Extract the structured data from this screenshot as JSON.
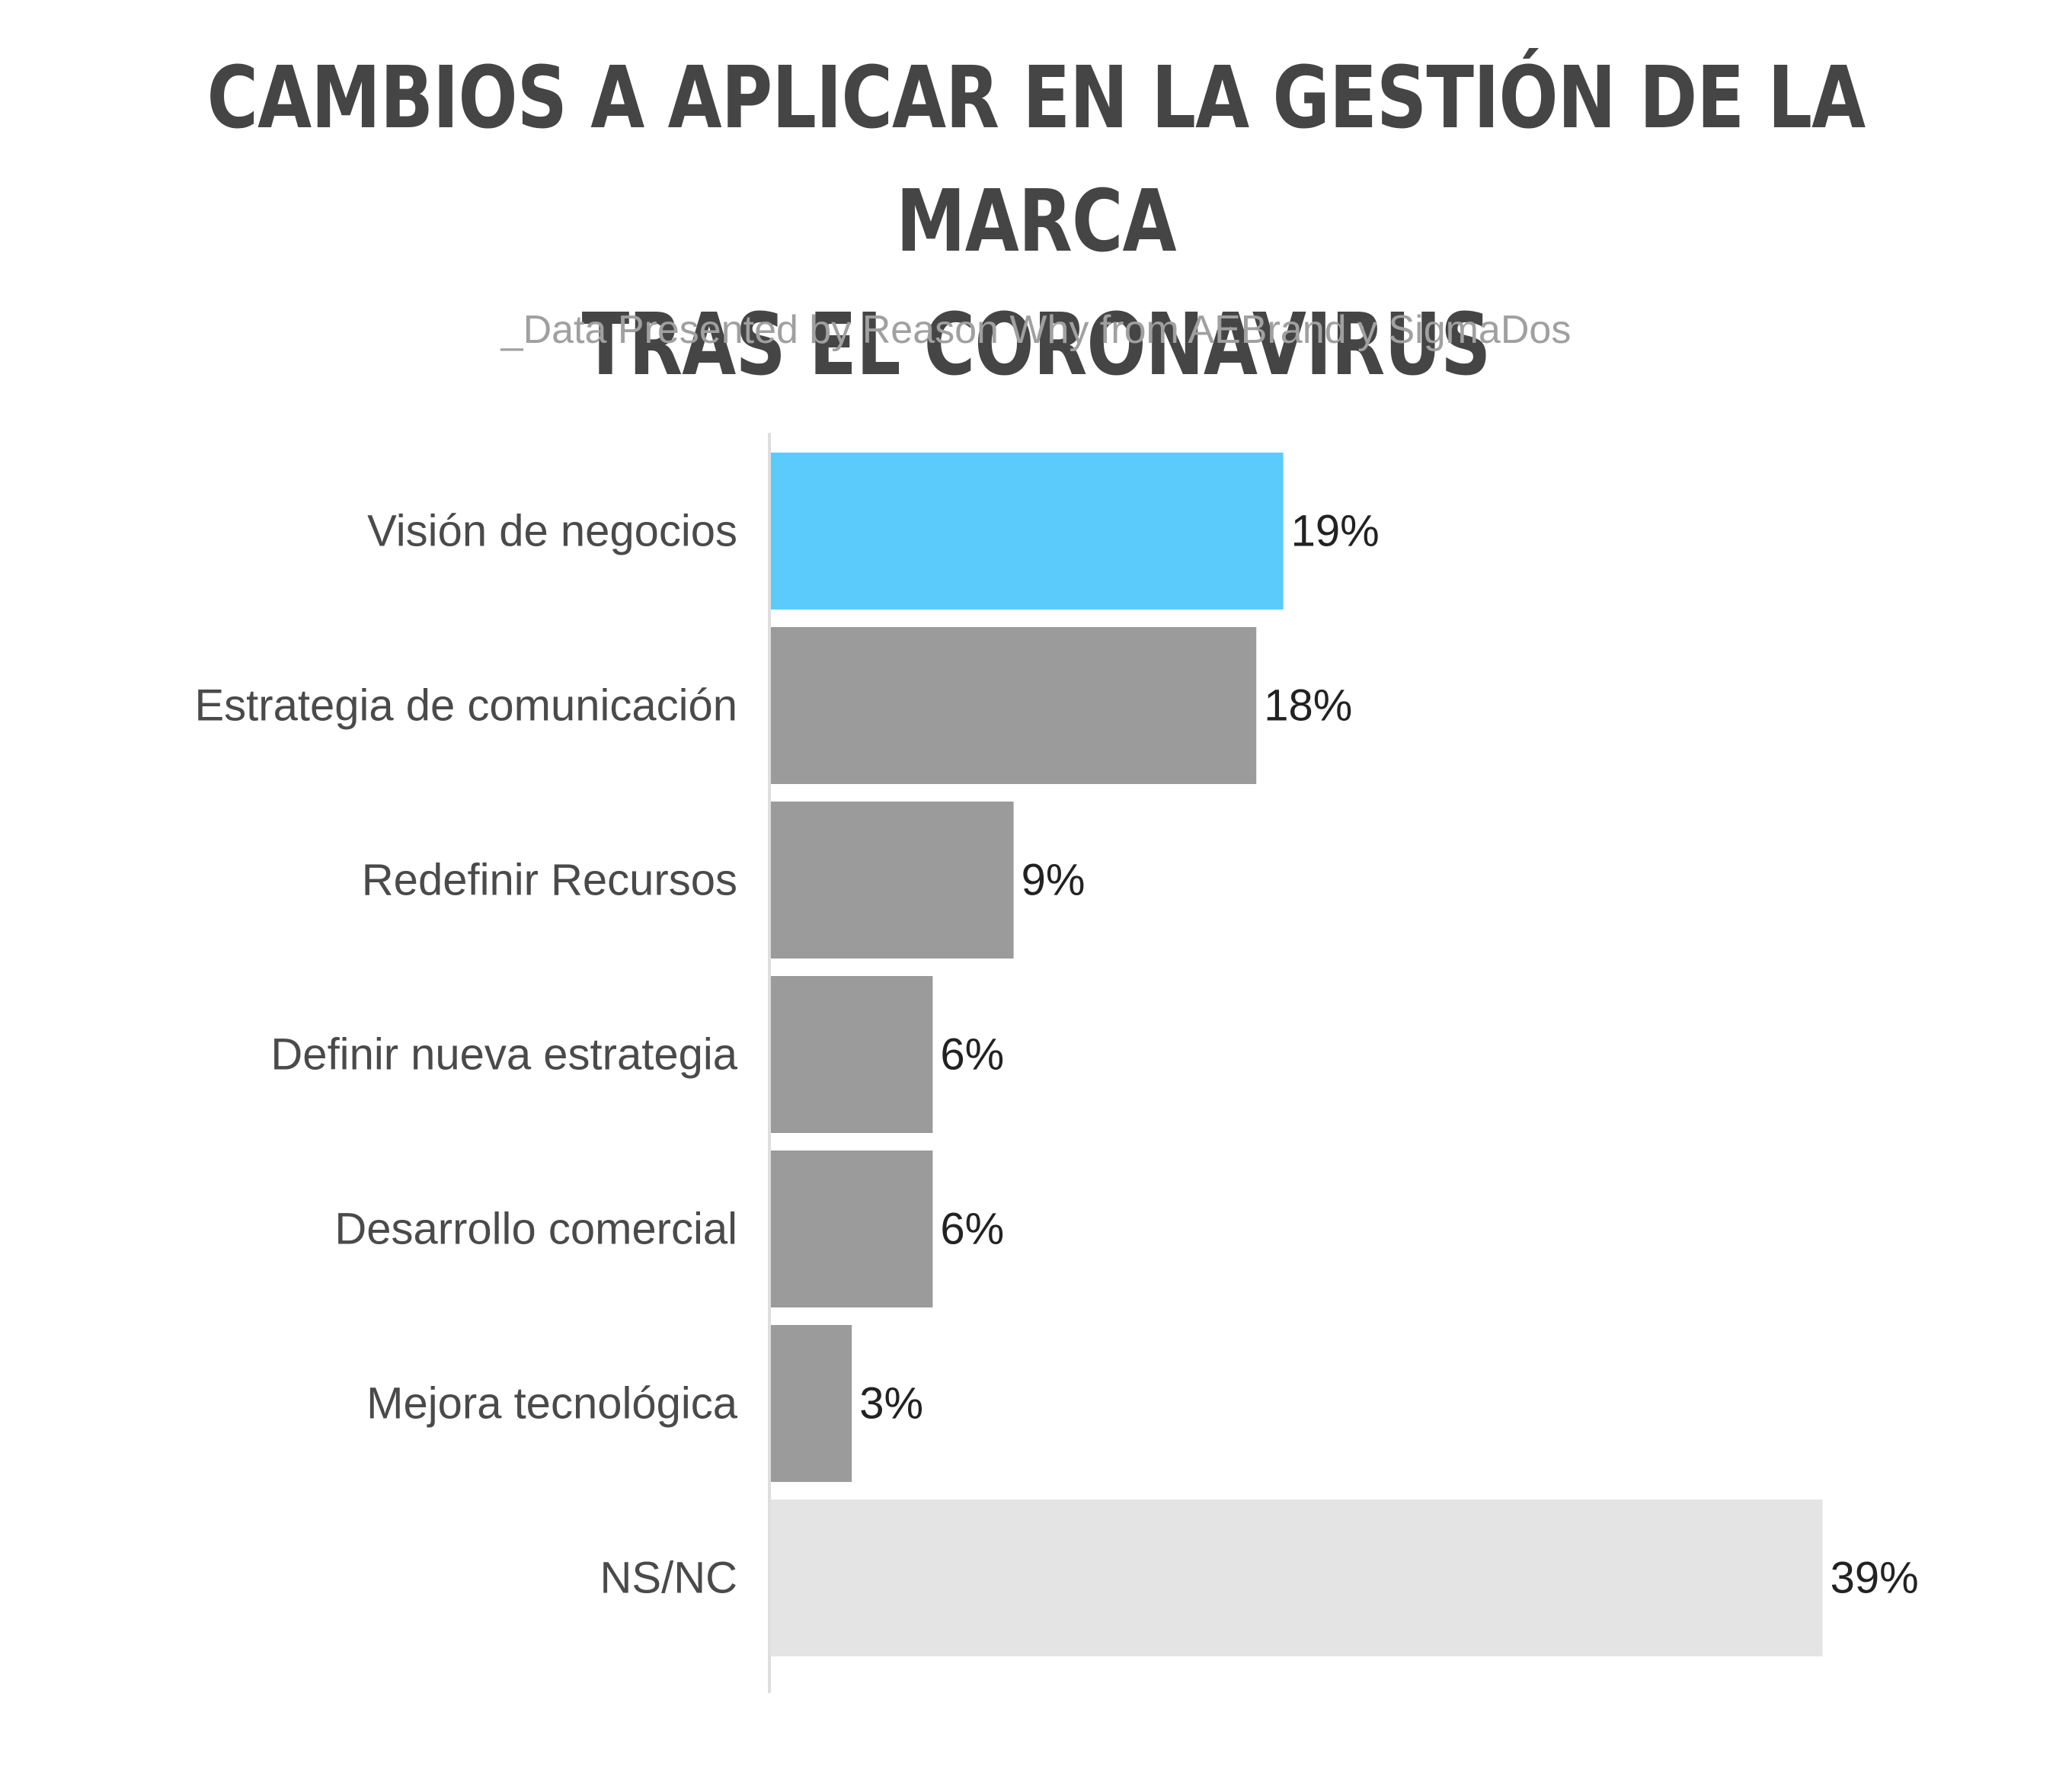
{
  "header": {
    "title_line1": "CAMBIOS A APLICAR EN LA GESTIÓN DE LA MARCA",
    "title_line2": "TRAS EL CORONAVIRUS",
    "subtitle": "_Data Presented by Reason Why from AEBrand y SigmaDos"
  },
  "chart_data": {
    "type": "bar",
    "orientation": "horizontal",
    "title": "CAMBIOS A APLICAR EN LA GESTIÓN DE LA MARCA TRAS EL CORONAVIRUS",
    "subtitle": "_Data Presented by Reason Why from AEBrand y SigmaDos",
    "categories": [
      "Visión de negocios",
      "Estrategia de comunicación",
      "Redefinir Recursos",
      "Definir nueva estrategia",
      "Desarrollo comercial",
      "Mejora tecnológica",
      "NS/NC"
    ],
    "values": [
      19,
      18,
      9,
      6,
      6,
      3,
      39
    ],
    "value_labels": [
      "19%",
      "18%",
      "9%",
      "6%",
      "6%",
      "3%",
      "39%"
    ],
    "unit": "%",
    "xlim": [
      0,
      39
    ],
    "grid": false,
    "legend": "none",
    "colors": {
      "highlight": "#5bcbfc",
      "default": "#9b9b9b",
      "nsnc": "#e4e4e4",
      "axis": "#dedede"
    },
    "bar_colors": [
      "#5bcbfc",
      "#9b9b9b",
      "#9b9b9b",
      "#9b9b9b",
      "#9b9b9b",
      "#9b9b9b",
      "#e4e4e4"
    ]
  }
}
